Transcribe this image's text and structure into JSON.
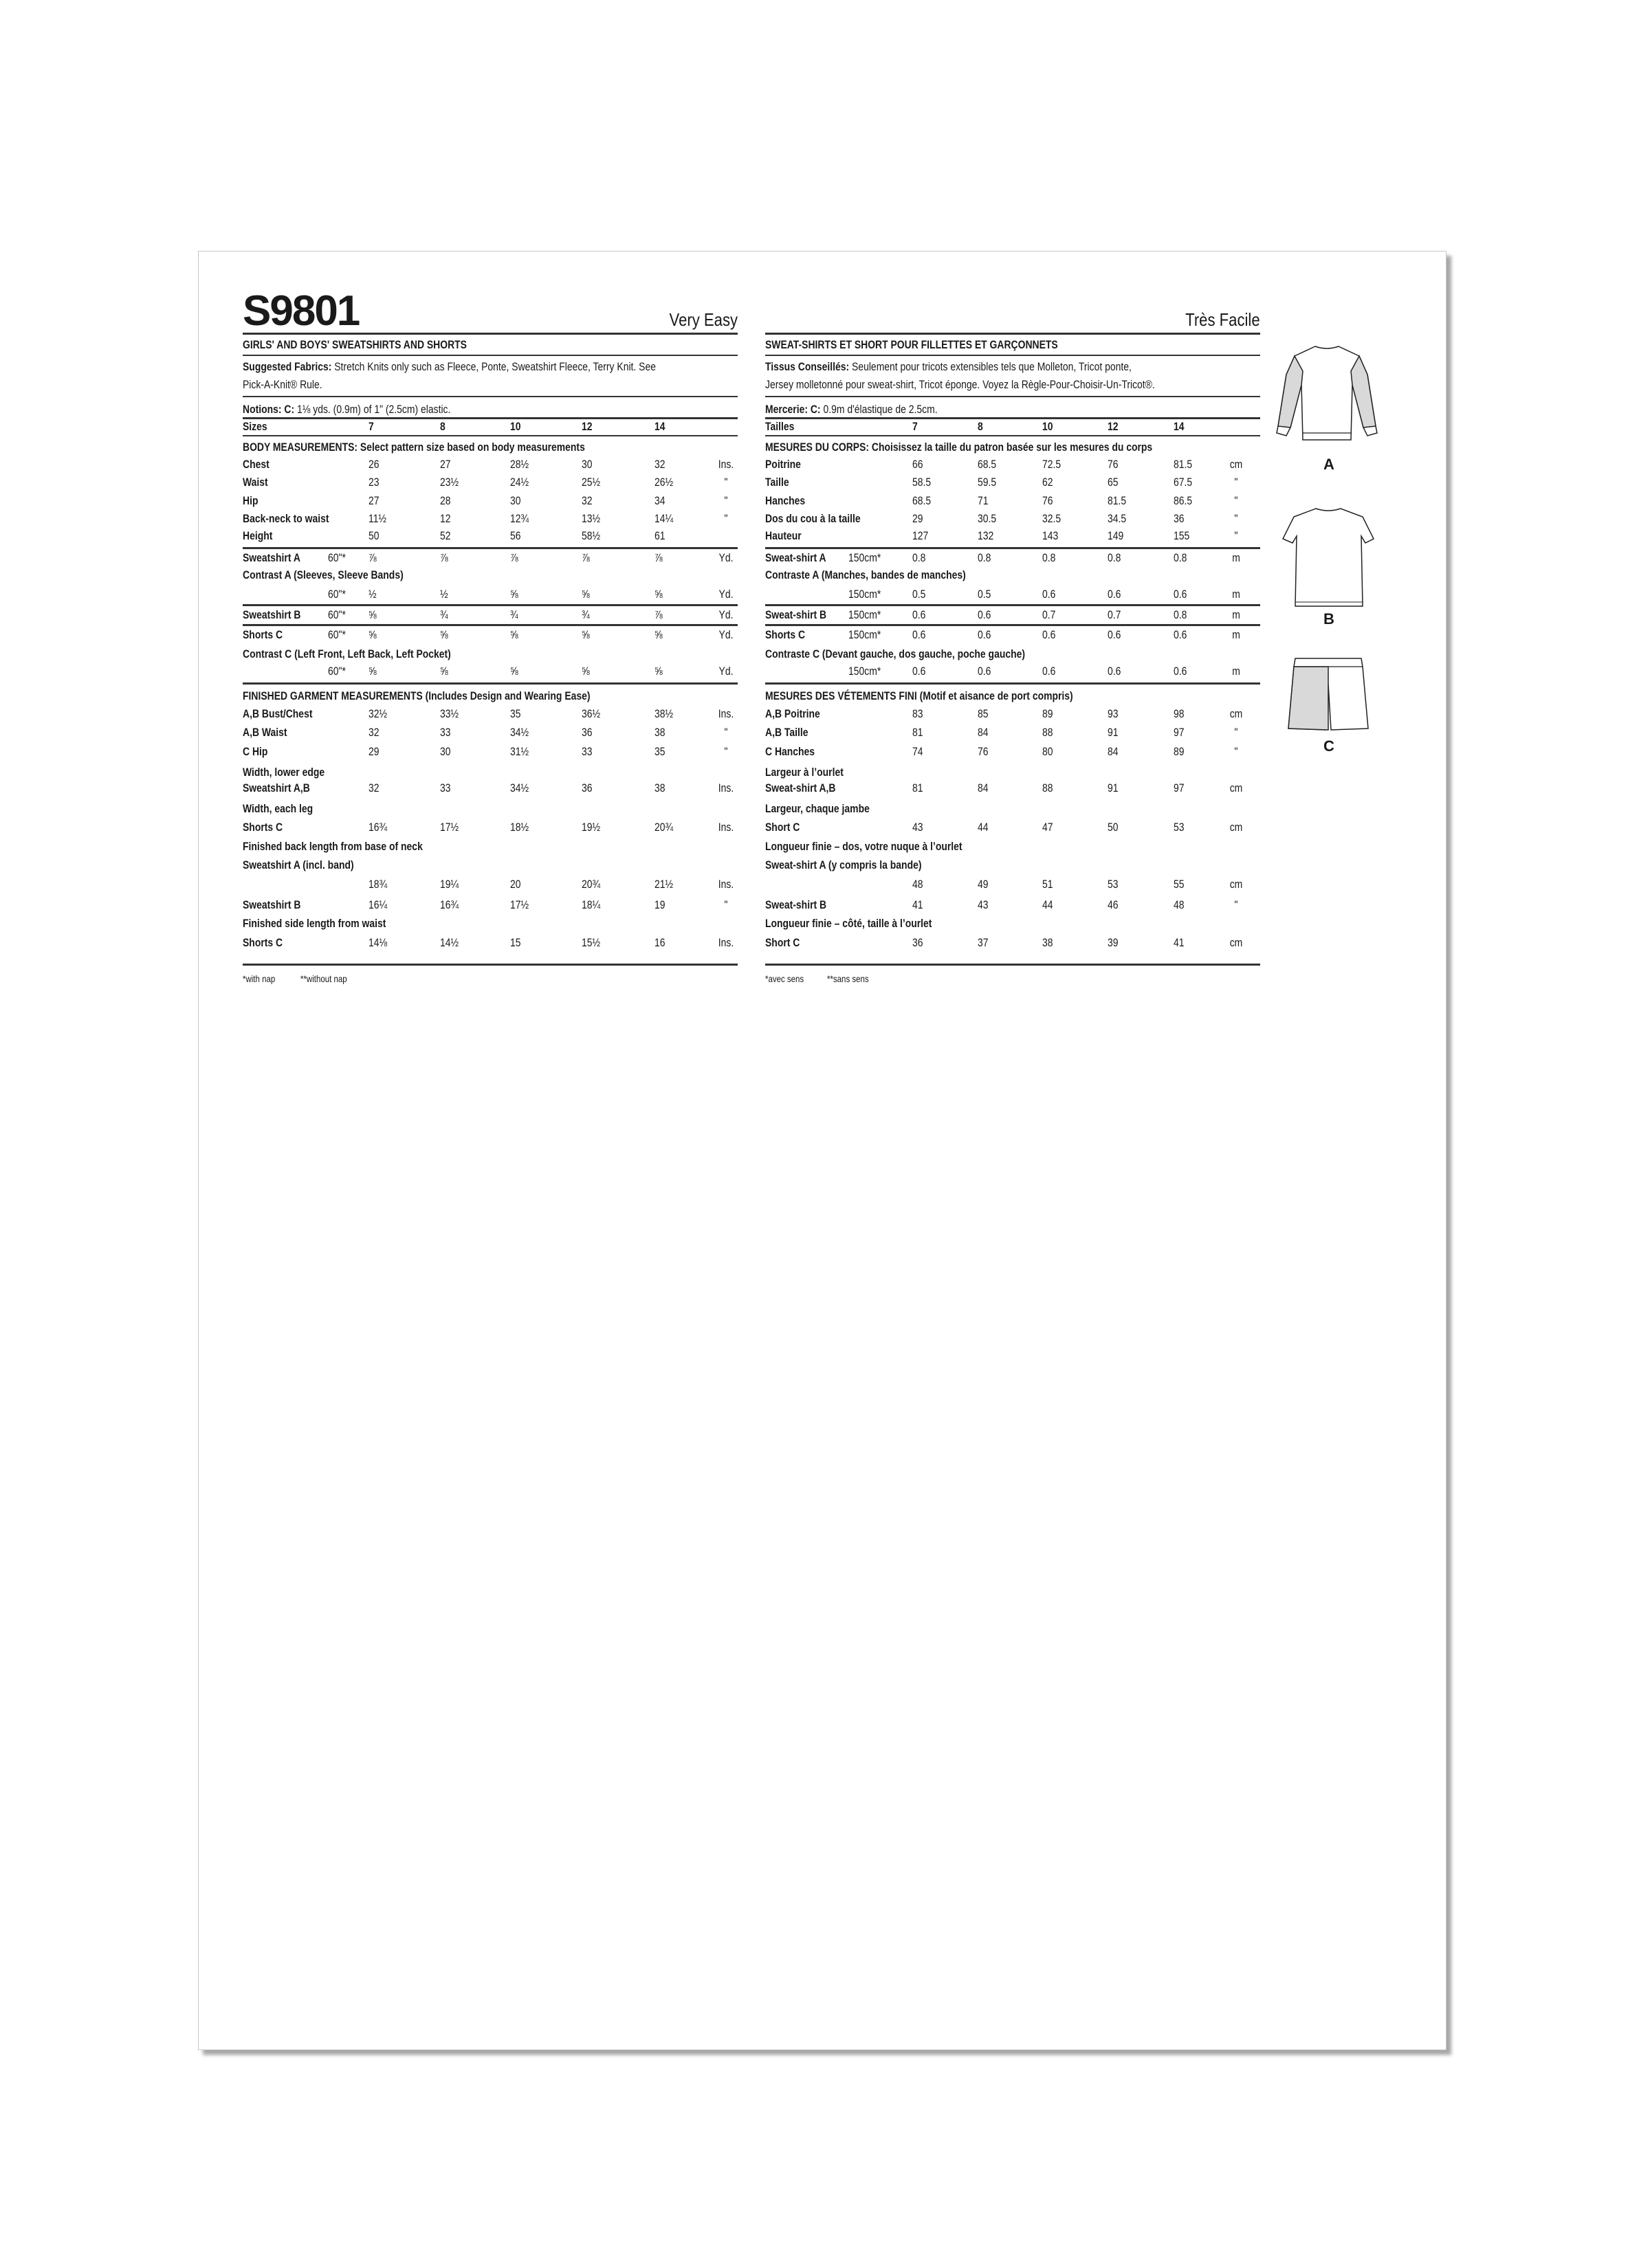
{
  "english": {
    "code": "S9801",
    "difficulty": "Very Easy",
    "title": "GIRLS' AND BOYS' SWEATSHIRTS AND SHORTS",
    "fabrics_label": "Suggested Fabrics:",
    "fabrics_line1": "Stretch Knits only such as Fleece, Ponte, Sweatshirt Fleece, Terry Knit. See",
    "fabrics_line2": "Pick-A-Knit® Rule.",
    "notions_label": "Notions: C:",
    "notions_text": "1⅛ yds. (0.9m) of 1\" (2.5cm) elastic.",
    "sizes_label": "Sizes",
    "sizes": [
      "7",
      "8",
      "10",
      "12",
      "14"
    ],
    "body_heading": "BODY MEASUREMENTS: Select pattern size based on body measurements",
    "body_rows": [
      {
        "label": "Chest",
        "values": [
          "26",
          "27",
          "28½",
          "30",
          "32"
        ],
        "unit": "Ins."
      },
      {
        "label": "Waist",
        "values": [
          "23",
          "23½",
          "24½",
          "25½",
          "26½"
        ],
        "unit": "\""
      },
      {
        "label": "Hip",
        "values": [
          "27",
          "28",
          "30",
          "32",
          "34"
        ],
        "unit": "\""
      },
      {
        "label": "Back-neck to waist",
        "values": [
          "11½",
          "12",
          "12¾",
          "13½",
          "14¼"
        ],
        "unit": "\""
      },
      {
        "label": "Height",
        "values": [
          "50",
          "52",
          "56",
          "58½",
          "61"
        ],
        "unit": ""
      }
    ],
    "yardage_rows": [
      {
        "label": "Sweatshirt A",
        "width": "60\"*",
        "values": [
          "⅞",
          "⅞",
          "⅞",
          "⅞",
          "⅞"
        ],
        "unit": "Yd."
      },
      {
        "label": "Contrast A (Sleeves, Sleeve Bands)"
      },
      {
        "label": "",
        "width": "60\"*",
        "values": [
          "½",
          "½",
          "⅝",
          "⅝",
          "⅝"
        ],
        "unit": "Yd."
      },
      {
        "label": "Sweatshirt B",
        "width": "60\"*",
        "values": [
          "⅝",
          "¾",
          "¾",
          "¾",
          "⅞"
        ],
        "unit": "Yd."
      },
      {
        "label": "Shorts C",
        "width": "60\"*",
        "values": [
          "⅝",
          "⅝",
          "⅝",
          "⅝",
          "⅝"
        ],
        "unit": "Yd."
      },
      {
        "label": "Contrast C (Left Front, Left Back, Left Pocket)"
      },
      {
        "label": "",
        "width": "60\"*",
        "values": [
          "⅝",
          "⅝",
          "⅝",
          "⅝",
          "⅝"
        ],
        "unit": "Yd."
      }
    ],
    "finished_heading": "FINISHED GARMENT MEASUREMENTS (Includes Design and Wearing Ease)",
    "finished_rows": [
      {
        "label": "A,B Bust/Chest",
        "values": [
          "32½",
          "33½",
          "35",
          "36½",
          "38½"
        ],
        "unit": "Ins."
      },
      {
        "label": "A,B Waist",
        "values": [
          "32",
          "33",
          "34½",
          "36",
          "38"
        ],
        "unit": "\""
      },
      {
        "label": "C Hip",
        "values": [
          "29",
          "30",
          "31½",
          "33",
          "35"
        ],
        "unit": "\""
      },
      {
        "label": "Width, lower edge"
      },
      {
        "label": "Sweatshirt A,B",
        "values": [
          "32",
          "33",
          "34½",
          "36",
          "38"
        ],
        "unit": "Ins."
      },
      {
        "label": "Width, each leg"
      },
      {
        "label": "Shorts C",
        "values": [
          "16¾",
          "17½",
          "18½",
          "19½",
          "20¾"
        ],
        "unit": "Ins."
      },
      {
        "label": "Finished back length from base of neck"
      },
      {
        "label": "Sweatshirt A (incl. band)"
      },
      {
        "label": "",
        "values": [
          "18¾",
          "19¼",
          "20",
          "20¾",
          "21½"
        ],
        "unit": "Ins."
      },
      {
        "label": "Sweatshirt B",
        "values": [
          "16¼",
          "16¾",
          "17½",
          "18¼",
          "19"
        ],
        "unit": "\""
      },
      {
        "label": "Finished side length from waist"
      },
      {
        "label": "Shorts C",
        "values": [
          "14⅛",
          "14½",
          "15",
          "15½",
          "16"
        ],
        "unit": "Ins."
      }
    ],
    "footnote_1": "*with nap",
    "footnote_2": "**without nap"
  },
  "french": {
    "code": "",
    "difficulty": "Très Facile",
    "title": "SWEAT-SHIRTS ET SHORT POUR FILLETTES ET GARÇONNETS",
    "fabrics_label": "Tissus Conseillés:",
    "fabrics_line1": "Seulement pour tricots extensibles tels que Molleton, Tricot ponte,",
    "fabrics_line2": "Jersey molletonné pour sweat-shirt, Tricot éponge. Voyez la Règle-Pour-Choisir-Un-Tricot®.",
    "notions_label": "Mercerie: C:",
    "notions_text": "0.9m d'élastique de 2.5cm.",
    "sizes_label": "Tailles",
    "sizes": [
      "7",
      "8",
      "10",
      "12",
      "14"
    ],
    "body_heading": "MESURES DU CORPS: Choisissez la taille du patron basée sur les mesures du corps",
    "body_rows": [
      {
        "label": "Poitrine",
        "values": [
          "66",
          "68.5",
          "72.5",
          "76",
          "81.5"
        ],
        "unit": "cm"
      },
      {
        "label": "Taille",
        "values": [
          "58.5",
          "59.5",
          "62",
          "65",
          "67.5"
        ],
        "unit": "\""
      },
      {
        "label": "Hanches",
        "values": [
          "68.5",
          "71",
          "76",
          "81.5",
          "86.5"
        ],
        "unit": "\""
      },
      {
        "label": "Dos du cou à la taille",
        "values": [
          "29",
          "30.5",
          "32.5",
          "34.5",
          "36"
        ],
        "unit": "\""
      },
      {
        "label": "Hauteur",
        "values": [
          "127",
          "132",
          "143",
          "149",
          "155"
        ],
        "unit": "\""
      }
    ],
    "yardage_rows": [
      {
        "label": "Sweat-shirt A",
        "width": "150cm*",
        "values": [
          "0.8",
          "0.8",
          "0.8",
          "0.8",
          "0.8"
        ],
        "unit": "m"
      },
      {
        "label": "Contraste A (Manches, bandes de manches)"
      },
      {
        "label": "",
        "width": "150cm*",
        "values": [
          "0.5",
          "0.5",
          "0.6",
          "0.6",
          "0.6"
        ],
        "unit": "m"
      },
      {
        "label": "Sweat-shirt B",
        "width": "150cm*",
        "values": [
          "0.6",
          "0.6",
          "0.7",
          "0.7",
          "0.8"
        ],
        "unit": "m"
      },
      {
        "label": "Shorts C",
        "width": "150cm*",
        "values": [
          "0.6",
          "0.6",
          "0.6",
          "0.6",
          "0.6"
        ],
        "unit": "m"
      },
      {
        "label": "Contraste C (Devant gauche, dos gauche, poche gauche)"
      },
      {
        "label": "",
        "width": "150cm*",
        "values": [
          "0.6",
          "0.6",
          "0.6",
          "0.6",
          "0.6"
        ],
        "unit": "m"
      }
    ],
    "finished_heading": "MESURES DES VÉTEMENTS FINI (Motif et aisance de port compris)",
    "finished_rows": [
      {
        "label": "A,B Poitrine",
        "values": [
          "83",
          "85",
          "89",
          "93",
          "98"
        ],
        "unit": "cm"
      },
      {
        "label": "A,B Taille",
        "values": [
          "81",
          "84",
          "88",
          "91",
          "97"
        ],
        "unit": "\""
      },
      {
        "label": "C Hanches",
        "values": [
          "74",
          "76",
          "80",
          "84",
          "89"
        ],
        "unit": "\""
      },
      {
        "label": "Largeur à l’ourlet"
      },
      {
        "label": "Sweat-shirt A,B",
        "values": [
          "81",
          "84",
          "88",
          "91",
          "97"
        ],
        "unit": "cm"
      },
      {
        "label": "Largeur, chaque jambe"
      },
      {
        "label": "Short C",
        "values": [
          "43",
          "44",
          "47",
          "50",
          "53"
        ],
        "unit": "cm"
      },
      {
        "label": "Longueur finie – dos, votre nuque à l’ourlet"
      },
      {
        "label": "Sweat-shirt A (y compris la bande)"
      },
      {
        "label": "",
        "values": [
          "48",
          "49",
          "51",
          "53",
          "55"
        ],
        "unit": "cm"
      },
      {
        "label": "Sweat-shirt B",
        "values": [
          "41",
          "43",
          "44",
          "46",
          "48"
        ],
        "unit": "\""
      },
      {
        "label": "Longueur finie – côté, taille à l’ourlet"
      },
      {
        "label": "Short C",
        "values": [
          "36",
          "37",
          "38",
          "39",
          "41"
        ],
        "unit": "cm"
      }
    ],
    "footnote_1": "*avec sens",
    "footnote_2": "**sans sens"
  },
  "views": [
    {
      "label": "A",
      "icon": "sweatshirt-long-sleeve-icon"
    },
    {
      "label": "B",
      "icon": "sweatshirt-short-sleeve-icon"
    },
    {
      "label": "C",
      "icon": "shorts-icon"
    }
  ],
  "colors": {
    "contrast_fill": "#d9d9d9",
    "ink": "#1a1a1a"
  }
}
